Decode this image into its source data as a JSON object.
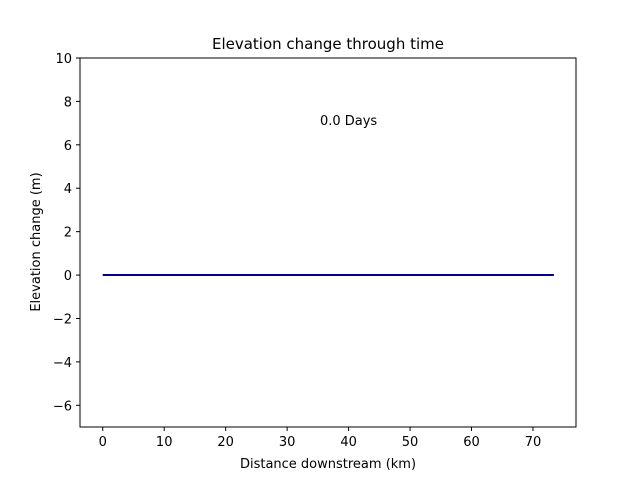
{
  "chart_data": {
    "type": "line",
    "title": "Elevation change through time",
    "xlabel": "Distance downstream (km)",
    "ylabel": "Elevation change (m)",
    "xlim": [
      -3.7,
      77.0
    ],
    "ylim": [
      -7,
      10
    ],
    "xticks": [
      0,
      10,
      20,
      30,
      40,
      50,
      60,
      70
    ],
    "yticks": [
      -6,
      -4,
      -2,
      0,
      2,
      4,
      6,
      8,
      10
    ],
    "grid": false,
    "annotation": {
      "text": "0.0 Days",
      "x": 40.0,
      "y": 7.15
    },
    "series": [
      {
        "x": [
          0,
          73.4
        ],
        "y": [
          0,
          0
        ],
        "color": "#00008b"
      }
    ]
  }
}
